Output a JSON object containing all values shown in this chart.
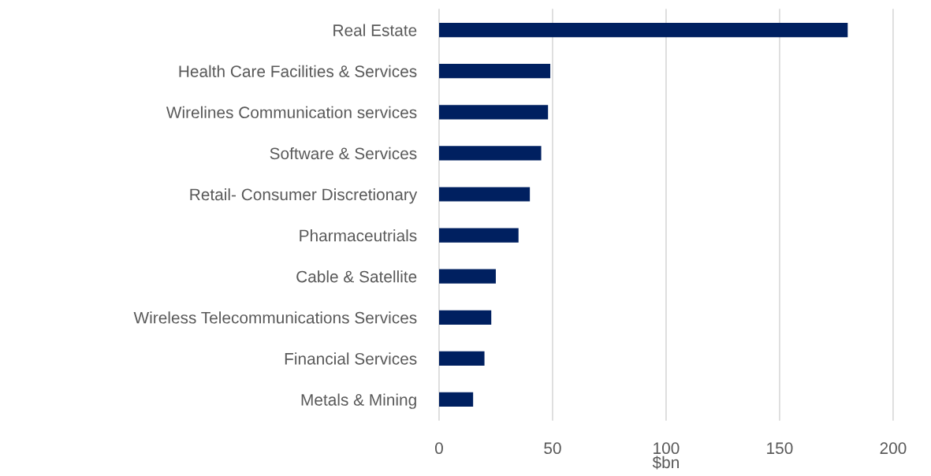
{
  "chart_data": {
    "type": "bar",
    "orientation": "horizontal",
    "xlabel": "$bn",
    "categories": [
      "Real Estate",
      "Health Care Facilities & Services",
      "Wirelines Communication services",
      "Software & Services",
      "Retail- Consumer Discretionary",
      "Pharmaceutrials",
      "Cable & Satellite",
      "Wireless Telecommunications Services",
      "Financial Services",
      "Metals & Mining"
    ],
    "values": [
      180,
      49,
      48,
      45,
      40,
      35,
      25,
      23,
      20,
      15
    ],
    "color": "#002060",
    "xlim": [
      0,
      200
    ],
    "xticks": [
      0,
      50,
      100,
      150,
      200
    ],
    "grid": "x",
    "legend": false
  }
}
